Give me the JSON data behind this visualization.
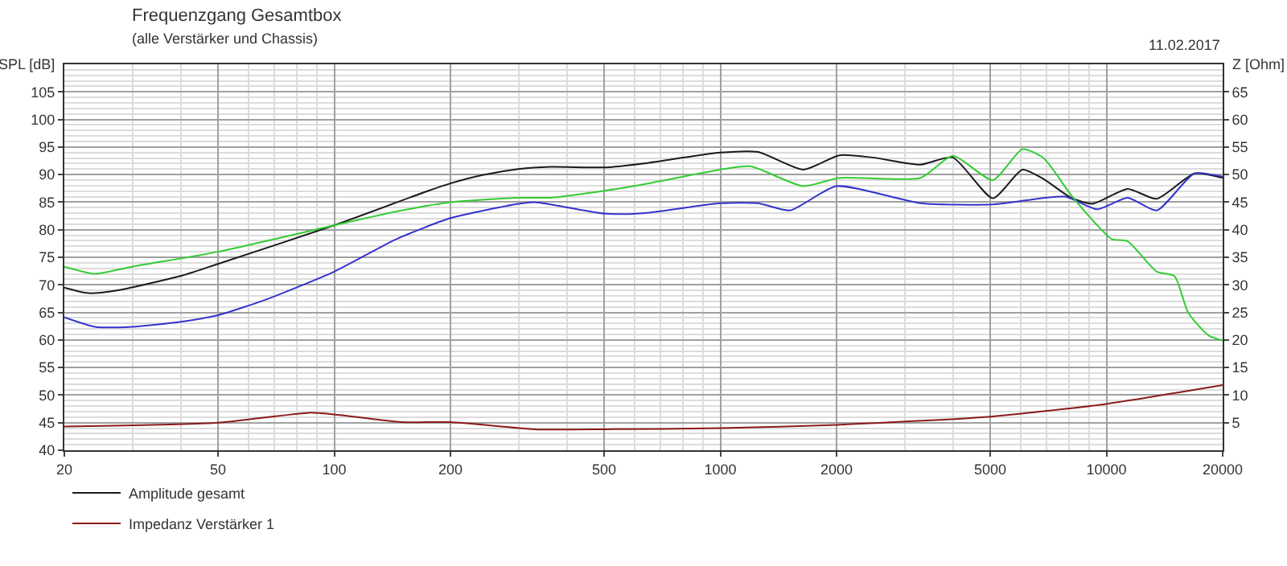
{
  "chart_data": {
    "type": "line",
    "title": "Frequenzgang Gesamtbox",
    "subtitle": "(alle Verstärker und Chassis)",
    "ylabel": "SPL [dB]",
    "y2label": "Z [Ohm]",
    "annotations": [
      "11.02.2017"
    ],
    "log": "x",
    "grid": true,
    "legend": "bottom",
    "line_style": "solid",
    "marker": "none",
    "xlim": [
      20,
      20000
    ],
    "xticks": [
      20,
      50,
      100,
      200,
      500,
      1000,
      2000,
      5000,
      10000,
      20000
    ],
    "ylim": [
      40,
      110
    ],
    "yticks": [
      40,
      45,
      50,
      55,
      60,
      65,
      70,
      75,
      80,
      85,
      90,
      95,
      100,
      105
    ],
    "y2lim": [
      0,
      70
    ],
    "y2ticks": [
      5,
      10,
      15,
      20,
      25,
      30,
      35,
      40,
      45,
      50,
      55,
      60,
      65
    ],
    "series": [
      {
        "name": "Amplitude gesamt",
        "color": "#1a1a1a",
        "x": [
          20,
          23,
          27,
          40,
          50,
          100,
          176,
          200,
          242,
          300,
          363,
          505,
          630,
          1000,
          1252,
          1641,
          2033,
          2478,
          3300,
          4000,
          5080,
          6060,
          6870,
          8100,
          9200,
          11350,
          13500,
          16900,
          20000
        ],
        "values": [
          69.5,
          68.5,
          68.9,
          71.6,
          73.8,
          80.8,
          87.1,
          88.4,
          89.9,
          91.0,
          91.4,
          91.3,
          92.0,
          94.0,
          94.1,
          90.9,
          93.5,
          93.1,
          91.8,
          93.1,
          85.7,
          90.9,
          89.2,
          85.8,
          84.7,
          87.4,
          85.6,
          90.2,
          89.4
        ]
      },
      {
        "color": "#3333cc",
        "x": [
          20,
          24,
          30,
          40,
          50,
          67,
          100,
          145,
          200,
          300,
          330,
          363,
          505,
          630,
          1000,
          1252,
          1515,
          2000,
          3300,
          5080,
          7800,
          9470,
          11350,
          13500,
          16900,
          20000
        ],
        "values": [
          64.1,
          62.4,
          62.4,
          63.3,
          64.5,
          67.4,
          72.4,
          78.3,
          82.1,
          84.7,
          85.0,
          84.6,
          82.9,
          83.0,
          84.8,
          84.8,
          83.5,
          87.9,
          84.8,
          84.6,
          86.0,
          83.7,
          85.8,
          83.5,
          90.2,
          89.6
        ]
      },
      {
        "color": "#33cc33",
        "x": [
          20,
          24,
          30,
          50,
          100,
          145,
          200,
          300,
          363,
          505,
          630,
          1000,
          1195,
          1641,
          2033,
          3300,
          4000,
          5080,
          6060,
          6870,
          8100,
          9470,
          10320,
          11350,
          13500,
          15000,
          16300,
          18400,
          20000
        ],
        "values": [
          73.3,
          72.0,
          73.3,
          76.0,
          80.8,
          83.3,
          85.0,
          85.8,
          85.8,
          87.1,
          88.2,
          90.9,
          91.5,
          87.9,
          89.4,
          89.4,
          93.4,
          89.0,
          94.6,
          93.0,
          86.3,
          80.8,
          78.3,
          77.9,
          72.4,
          71.6,
          64.9,
          60.8,
          59.9
        ]
      },
      {
        "name": "Impedanz Verstärker 1",
        "color": "#8b1a1a",
        "axis": "y2",
        "x": [
          20,
          50,
          86,
          100,
          150,
          200,
          330,
          500,
          1000,
          2000,
          5000,
          10000,
          20000
        ],
        "values": [
          4.3,
          5.0,
          6.8,
          6.5,
          5.1,
          5.1,
          3.8,
          3.8,
          4.0,
          4.6,
          6.1,
          8.4,
          11.8
        ]
      }
    ]
  }
}
